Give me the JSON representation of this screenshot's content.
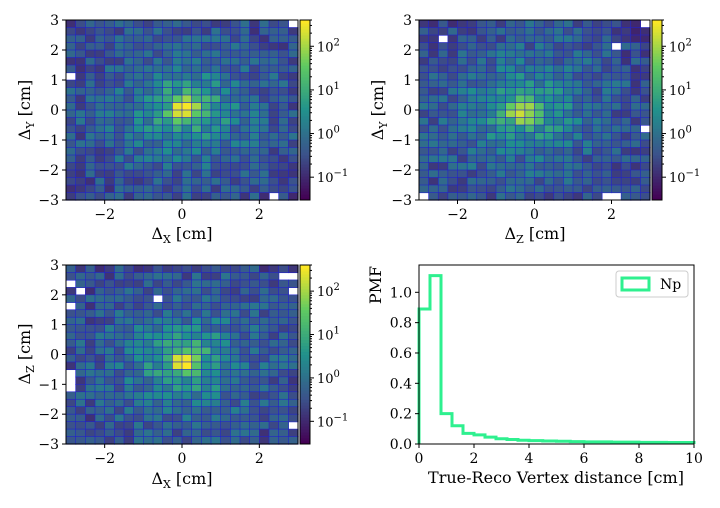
{
  "chart_data": [
    {
      "type": "heatmap",
      "xlabel": "Δ_X [cm]",
      "ylabel": "Δ_Y [cm]",
      "xlim": [
        -3,
        3
      ],
      "ylim": [
        -3,
        3
      ],
      "xticks": [
        "−2",
        "0",
        "2"
      ],
      "yticks": [
        "−3",
        "−2",
        "−1",
        "0",
        "1",
        "2",
        "3"
      ],
      "bins": 24,
      "color_scale": "log",
      "colorbar_ticks": [
        "10^-1",
        "10^0",
        "10^1",
        "10^2"
      ],
      "colorbar_range": [
        0.03,
        400
      ],
      "peak_center": [
        0.1,
        0.0
      ],
      "empty_cells": [
        [
          23,
          0
        ],
        [
          0,
          7
        ],
        [
          21,
          23
        ]
      ],
      "colormap": [
        "#440154",
        "#3b528b",
        "#21918c",
        "#5ec962",
        "#fde725"
      ],
      "grid_line_color": "#2222cc"
    },
    {
      "type": "heatmap",
      "xlabel": "Δ_Z [cm]",
      "ylabel": "Δ_Y [cm]",
      "xlim": [
        -3,
        3
      ],
      "ylim": [
        -3,
        3
      ],
      "xticks": [
        "−2",
        "0",
        "2"
      ],
      "yticks": [
        "−3",
        "−2",
        "−1",
        "0",
        "1",
        "2",
        "3"
      ],
      "bins": 24,
      "color_scale": "log",
      "colorbar_ticks": [
        "10^-1",
        "10^0",
        "10^1",
        "10^2"
      ],
      "colorbar_range": [
        0.03,
        400
      ],
      "peak_center": [
        -0.3,
        0.0
      ],
      "empty_cells": [
        [
          23,
          0
        ],
        [
          2,
          2
        ],
        [
          20,
          3
        ],
        [
          23,
          14
        ],
        [
          0,
          23
        ],
        [
          19,
          23
        ],
        [
          20,
          23
        ]
      ],
      "colormap": [
        "#440154",
        "#3b528b",
        "#21918c",
        "#5ec962",
        "#fde725"
      ],
      "grid_line_color": "#2222cc"
    },
    {
      "type": "heatmap",
      "xlabel": "Δ_X [cm]",
      "ylabel": "Δ_Z [cm]",
      "xlim": [
        -3,
        3
      ],
      "ylim": [
        -3,
        3
      ],
      "xticks": [
        "−2",
        "0",
        "2"
      ],
      "yticks": [
        "−3",
        "−2",
        "−1",
        "0",
        "1",
        "2",
        "3"
      ],
      "bins": 24,
      "color_scale": "log",
      "colorbar_ticks": [
        "10^-1",
        "10^0",
        "10^1",
        "10^2"
      ],
      "colorbar_range": [
        0.03,
        400
      ],
      "peak_center": [
        0.1,
        -0.2
      ],
      "empty_cells": [
        [
          0,
          2
        ],
        [
          22,
          1
        ],
        [
          23,
          1
        ],
        [
          1,
          3
        ],
        [
          23,
          3
        ],
        [
          9,
          4
        ],
        [
          0,
          5
        ],
        [
          0,
          14
        ],
        [
          0,
          15
        ],
        [
          0,
          16
        ],
        [
          23,
          21
        ]
      ],
      "colormap": [
        "#440154",
        "#3b528b",
        "#21918c",
        "#5ec962",
        "#fde725"
      ],
      "grid_line_color": "#2222cc"
    },
    {
      "type": "line",
      "style": "step-histogram",
      "xlabel": "True-Reco Vertex distance [cm]",
      "ylabel": "PMF",
      "xlim": [
        0,
        10
      ],
      "ylim": [
        0,
        1.18
      ],
      "xticks": [
        "0",
        "2",
        "4",
        "6",
        "8",
        "10"
      ],
      "yticks": [
        "0.0",
        "0.2",
        "0.4",
        "0.6",
        "0.8",
        "1.0"
      ],
      "legend_placement": "top-right",
      "series": [
        {
          "name": "Np",
          "color": "#2ef08f",
          "bin_edges": [
            0,
            0.4,
            0.8,
            1.2,
            1.6,
            2.0,
            2.4,
            2.8,
            3.2,
            3.6,
            4.0,
            4.5,
            5.0,
            5.5,
            6.0,
            7.0,
            8.0,
            9.0,
            10.0
          ],
          "values": [
            0.89,
            1.11,
            0.2,
            0.12,
            0.07,
            0.06,
            0.045,
            0.035,
            0.03,
            0.025,
            0.022,
            0.02,
            0.018,
            0.016,
            0.014,
            0.012,
            0.011,
            0.01
          ]
        }
      ]
    }
  ]
}
